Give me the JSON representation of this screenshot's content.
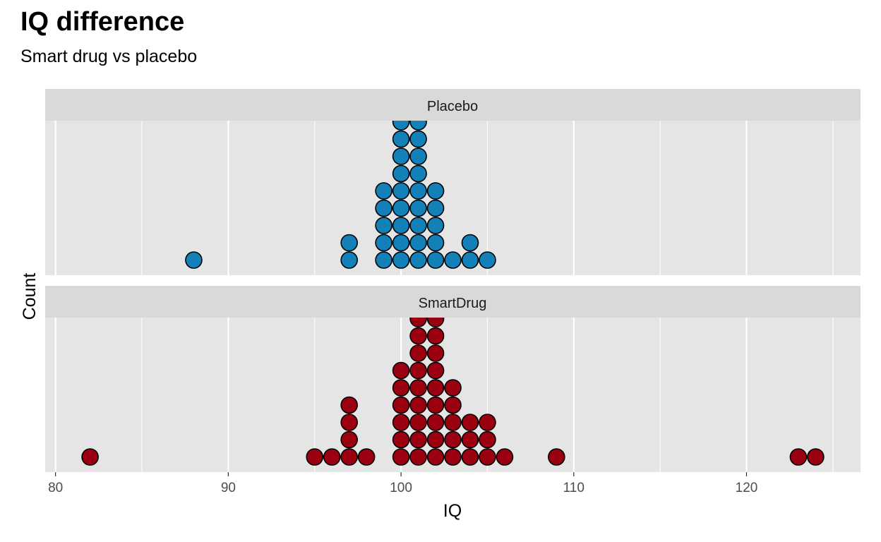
{
  "title": "IQ difference",
  "subtitle": "Smart drug vs placebo",
  "chart_data": {
    "type": "dotplot",
    "title": "IQ difference",
    "subtitle": "Smart drug vs placebo",
    "xlabel": "IQ",
    "ylabel": "Count",
    "xlim": [
      79.4,
      126.6
    ],
    "x_ticks": [
      80,
      90,
      100,
      110,
      120
    ],
    "grid": true,
    "legend": "none",
    "panels": [
      {
        "name": "Placebo",
        "color": "#1380B7",
        "counts": [
          [
            88,
            1
          ],
          [
            97,
            2
          ],
          [
            99,
            5
          ],
          [
            100,
            9
          ],
          [
            101,
            9
          ],
          [
            102,
            5
          ],
          [
            103,
            1
          ],
          [
            104,
            2
          ],
          [
            105,
            1
          ]
        ]
      },
      {
        "name": "SmartDrug",
        "color": "#9A0010",
        "counts": [
          [
            82,
            1
          ],
          [
            95,
            1
          ],
          [
            96,
            1
          ],
          [
            97,
            4
          ],
          [
            98,
            1
          ],
          [
            100,
            6
          ],
          [
            101,
            9
          ],
          [
            102,
            9
          ],
          [
            103,
            5
          ],
          [
            104,
            3
          ],
          [
            105,
            3
          ],
          [
            106,
            1
          ],
          [
            109,
            1
          ],
          [
            123,
            1
          ],
          [
            124,
            1
          ]
        ]
      }
    ]
  }
}
